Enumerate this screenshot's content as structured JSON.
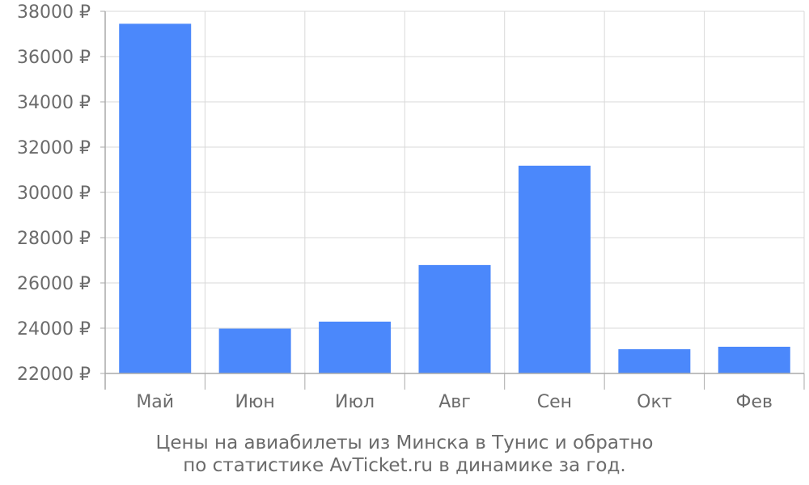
{
  "chart_data": {
    "type": "bar",
    "categories": [
      "Май",
      "Июн",
      "Июл",
      "Авг",
      "Сен",
      "Окт",
      "Фев"
    ],
    "values": [
      37450,
      23980,
      24290,
      26790,
      31180,
      23070,
      23180
    ],
    "ylim": [
      22000,
      38000
    ],
    "yticks": [
      22000,
      24000,
      26000,
      28000,
      30000,
      32000,
      34000,
      36000,
      38000
    ],
    "ytick_labels": [
      "22000 ₽",
      "24000 ₽",
      "26000 ₽",
      "28000 ₽",
      "30000 ₽",
      "32000 ₽",
      "34000 ₽",
      "36000 ₽",
      "38000 ₽"
    ],
    "grid": true,
    "bar_color": "#4b88fb",
    "title": "",
    "xlabel": "",
    "ylabel": ""
  },
  "caption": {
    "line1": "Цены на авиабилеты из Минска в Тунис и обратно",
    "line2": "по статистике AvTicket.ru в динамике за год."
  },
  "colors": {
    "grid": "#d9d9d9",
    "axis": "#aaaaaa",
    "text": "#6b6b6b"
  }
}
